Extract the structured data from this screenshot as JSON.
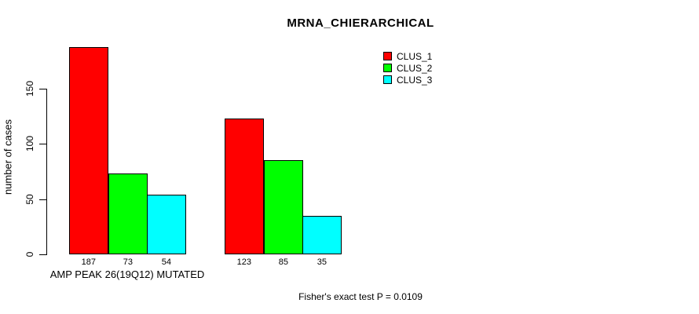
{
  "title": "MRNA_CHIERARCHICAL",
  "y_axis": {
    "label": "number of cases",
    "ticks": [
      0,
      50,
      100,
      150
    ]
  },
  "footer": "Fisher's exact test P = 0.0109",
  "legend": {
    "position": "top-right",
    "items": [
      {
        "label": "CLUS_1",
        "color": "#ff0000"
      },
      {
        "label": "CLUS_2",
        "color": "#00ff00"
      },
      {
        "label": "CLUS_3",
        "color": "#00ffff"
      }
    ]
  },
  "chart_data": {
    "type": "bar",
    "title": "MRNA_CHIERARCHICAL",
    "xlabel": "",
    "ylabel": "number of cases",
    "categories": [
      "AMP PEAK 26(19Q12) MUTATED",
      ""
    ],
    "series": [
      {
        "name": "CLUS_1",
        "color": "#ff0000",
        "values": [
          187,
          123
        ]
      },
      {
        "name": "CLUS_2",
        "color": "#00ff00",
        "values": [
          73,
          85
        ]
      },
      {
        "name": "CLUS_3",
        "color": "#00ffff",
        "values": [
          54,
          35
        ]
      }
    ],
    "bar_value_labels": [
      [
        187,
        73,
        54
      ],
      [
        123,
        85,
        35
      ]
    ],
    "yticks": [
      0,
      50,
      100,
      150
    ],
    "ylim": [
      0,
      190
    ],
    "grid": false,
    "legend_position": "top-right",
    "annotation": "Fisher's exact test P = 0.0109"
  }
}
